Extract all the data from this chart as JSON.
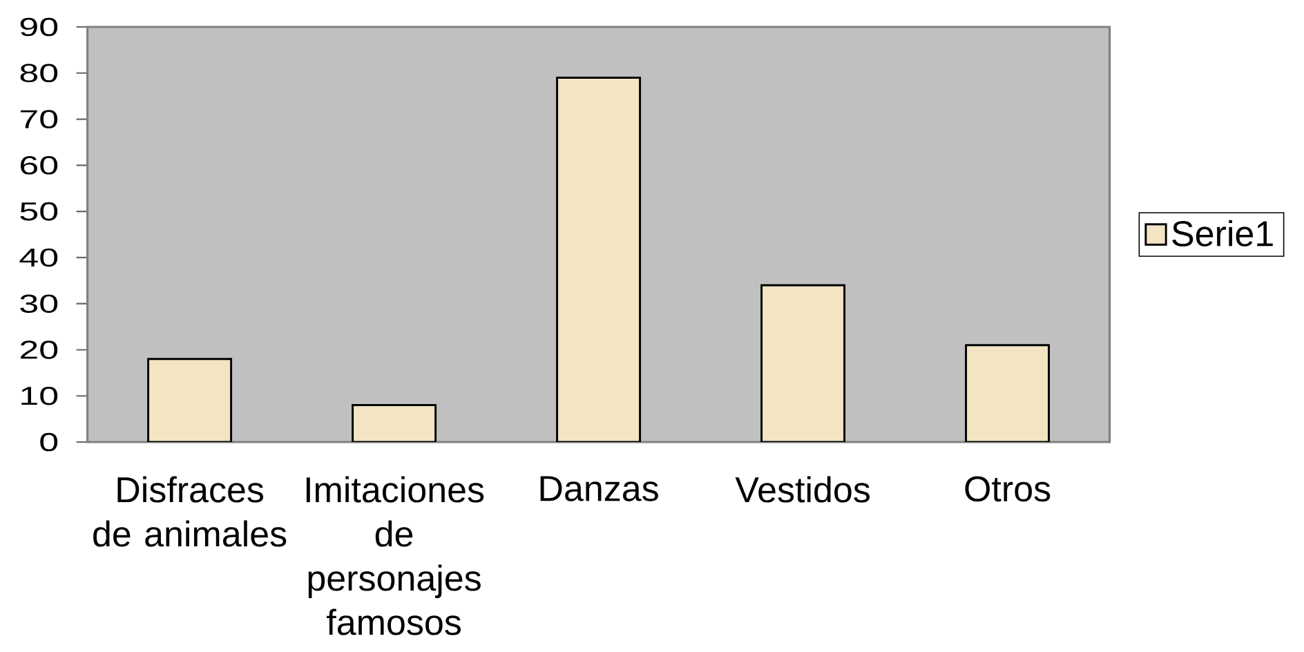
{
  "chart_data": {
    "type": "bar",
    "categories": [
      "Disfraces de animales",
      "Imitaciones de personajes famosos",
      "Danzas",
      "Vestidos",
      "Otros"
    ],
    "series": [
      {
        "name": "Serie1",
        "color": "#f3e4c3",
        "values": [
          18,
          8,
          79,
          34,
          21
        ]
      }
    ],
    "ylim": [
      0,
      90
    ],
    "yticks": [
      0,
      10,
      20,
      30,
      40,
      50,
      60,
      70,
      80,
      90
    ],
    "legend": "right"
  }
}
